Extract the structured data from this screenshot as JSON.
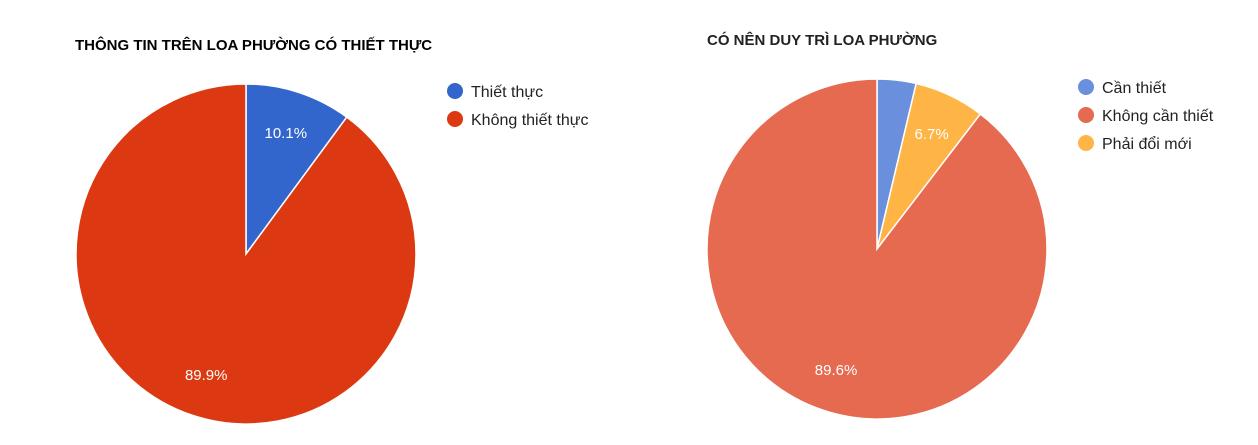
{
  "chart_data": [
    {
      "type": "pie",
      "title": "THÔNG TIN TRÊN LOA PHƯỜNG CÓ THIẾT THỰC",
      "legend_position": "right",
      "slices": [
        {
          "name": "Thiết thực",
          "value": 10.1,
          "label": "10.1%",
          "color": "#3366cc"
        },
        {
          "name": "Không thiết thực",
          "value": 89.9,
          "label": "89.9%",
          "color": "#dc3912"
        }
      ]
    },
    {
      "type": "pie",
      "title": "CÓ NÊN DUY TRÌ LOA PHƯỜNG",
      "legend_position": "right",
      "slices": [
        {
          "name": "Cần thiết",
          "value": 3.7,
          "label": "",
          "color": "#6a8fdc"
        },
        {
          "name": "Không cần thiết",
          "value": 89.6,
          "label": "89.6%",
          "color": "#e56a4f"
        },
        {
          "name": "Phải đổi mới",
          "value": 6.7,
          "label": "6.7%",
          "color": "#ffb446"
        }
      ]
    }
  ]
}
